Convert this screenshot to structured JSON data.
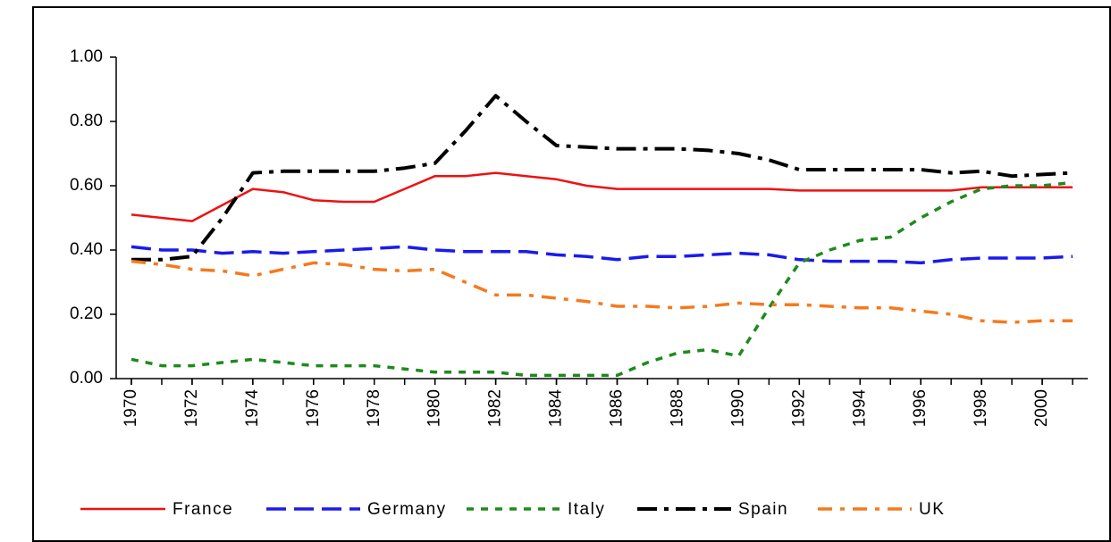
{
  "chart_data": {
    "type": "line",
    "x": [
      1970,
      1971,
      1972,
      1973,
      1974,
      1975,
      1976,
      1977,
      1978,
      1979,
      1980,
      1981,
      1982,
      1983,
      1984,
      1985,
      1986,
      1987,
      1988,
      1989,
      1990,
      1991,
      1992,
      1993,
      1994,
      1995,
      1996,
      1997,
      1998,
      1999,
      2000,
      2001
    ],
    "series": [
      {
        "name": "France",
        "color": "#ee1111",
        "dash": "solid",
        "values": [
          0.51,
          0.5,
          0.49,
          0.54,
          0.59,
          0.58,
          0.555,
          0.55,
          0.55,
          0.59,
          0.63,
          0.63,
          0.64,
          0.63,
          0.62,
          0.6,
          0.59,
          0.59,
          0.59,
          0.59,
          0.59,
          0.59,
          0.585,
          0.585,
          0.585,
          0.585,
          0.585,
          0.585,
          0.595,
          0.595,
          0.595,
          0.595
        ]
      },
      {
        "name": "Germany",
        "color": "#1a1aee",
        "dash": "dashed",
        "values": [
          0.41,
          0.4,
          0.4,
          0.39,
          0.395,
          0.39,
          0.395,
          0.4,
          0.405,
          0.41,
          0.4,
          0.395,
          0.395,
          0.395,
          0.385,
          0.38,
          0.37,
          0.38,
          0.38,
          0.385,
          0.39,
          0.385,
          0.37,
          0.365,
          0.365,
          0.365,
          0.36,
          0.37,
          0.375,
          0.375,
          0.375,
          0.38
        ]
      },
      {
        "name": "Italy",
        "color": "#1e8a1e",
        "dash": "dotted",
        "values": [
          0.06,
          0.04,
          0.04,
          0.05,
          0.06,
          0.05,
          0.04,
          0.04,
          0.04,
          0.03,
          0.02,
          0.02,
          0.02,
          0.01,
          0.01,
          0.01,
          0.01,
          0.05,
          0.08,
          0.09,
          0.07,
          0.22,
          0.36,
          0.4,
          0.43,
          0.44,
          0.5,
          0.55,
          0.59,
          0.6,
          0.6,
          0.61
        ]
      },
      {
        "name": "Spain",
        "color": "#000000",
        "dash": "dashdot",
        "values": [
          0.37,
          0.37,
          0.38,
          0.5,
          0.64,
          0.645,
          0.645,
          0.645,
          0.645,
          0.655,
          0.67,
          0.77,
          0.88,
          0.8,
          0.725,
          0.72,
          0.715,
          0.715,
          0.715,
          0.71,
          0.7,
          0.68,
          0.65,
          0.65,
          0.65,
          0.65,
          0.65,
          0.64,
          0.645,
          0.63,
          0.635,
          0.64
        ]
      },
      {
        "name": "UK",
        "color": "#f47a1e",
        "dash": "longdashdot",
        "values": [
          0.365,
          0.355,
          0.34,
          0.335,
          0.32,
          0.34,
          0.36,
          0.355,
          0.34,
          0.335,
          0.34,
          0.3,
          0.26,
          0.26,
          0.25,
          0.24,
          0.225,
          0.225,
          0.22,
          0.225,
          0.235,
          0.23,
          0.23,
          0.225,
          0.22,
          0.22,
          0.21,
          0.2,
          0.18,
          0.175,
          0.18,
          0.18
        ]
      }
    ],
    "xlim": [
      1969.5,
      2001.5
    ],
    "xticks": [
      1970,
      1972,
      1974,
      1976,
      1978,
      1980,
      1982,
      1984,
      1986,
      1988,
      1990,
      1992,
      1994,
      1996,
      1998,
      2000
    ],
    "ylim": [
      0,
      1
    ],
    "yticks": [
      {
        "value": 0,
        "label": "0.00"
      },
      {
        "value": 0.2,
        "label": "0.20"
      },
      {
        "value": 0.4,
        "label": "0.40"
      },
      {
        "value": 0.6,
        "label": "0.60"
      },
      {
        "value": 0.8,
        "label": "0.80"
      },
      {
        "value": 1,
        "label": "1.00"
      }
    ],
    "grid": false,
    "legend": "bottom"
  }
}
